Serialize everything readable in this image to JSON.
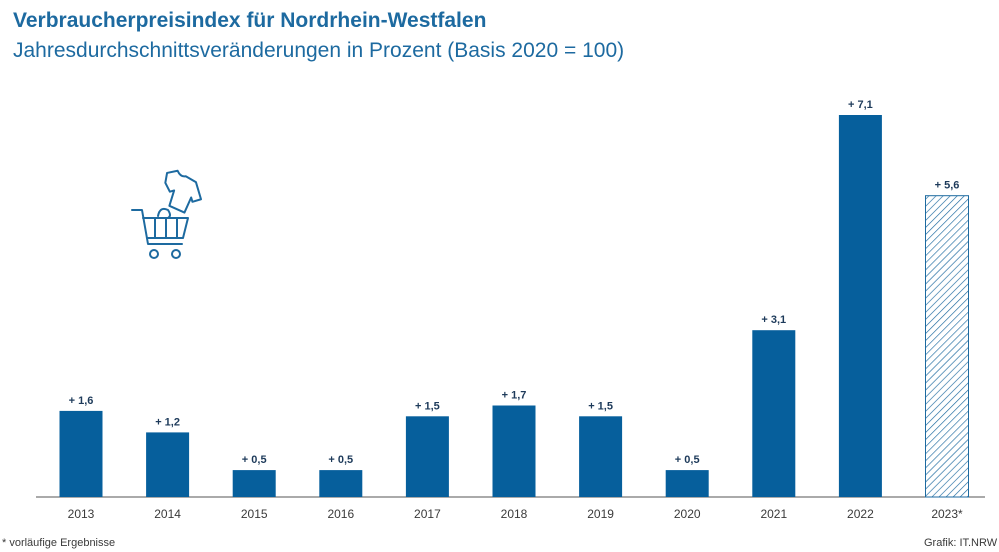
{
  "header": {
    "title": "Verbraucherpreisindex für Nordrhein-Westfalen",
    "subtitle": "Jahresdurchschnittsveränderungen in Prozent (Basis 2020 = 100)"
  },
  "footer": {
    "footnote": "* vorläufige Ergebnisse",
    "source": "Grafik: IT.NRW"
  },
  "colors": {
    "bar": "#065f9c",
    "hatch": "#1d6aa0",
    "text": "#3a3a3a",
    "label": "#1d3a5a"
  },
  "icons": [
    "t-shirt-icon",
    "shopping-cart-icon"
  ],
  "chart_data": {
    "type": "bar",
    "categories": [
      "2013",
      "2014",
      "2015",
      "2016",
      "2017",
      "2018",
      "2019",
      "2020",
      "2021",
      "2022",
      "2023*"
    ],
    "values": [
      1.6,
      1.2,
      0.5,
      0.5,
      1.5,
      1.7,
      1.5,
      0.5,
      3.1,
      7.1,
      5.6
    ],
    "value_labels": [
      "+ 1,6",
      "+ 1,2",
      "+ 0,5",
      "+ 0,5",
      "+ 1,5",
      "+ 1,7",
      "+ 1,5",
      "+ 0,5",
      "+ 3,1",
      "+ 7,1",
      "+ 5,6"
    ],
    "preliminary": [
      false,
      false,
      false,
      false,
      false,
      false,
      false,
      false,
      false,
      false,
      true
    ],
    "title": "Verbraucherpreisindex für Nordrhein-Westfalen",
    "subtitle": "Jahresdurchschnittsveränderungen in Prozent (Basis 2020 = 100)",
    "xlabel": "",
    "ylabel": "",
    "ylim": [
      0,
      7.1
    ],
    "grid": false,
    "legend": "none"
  }
}
